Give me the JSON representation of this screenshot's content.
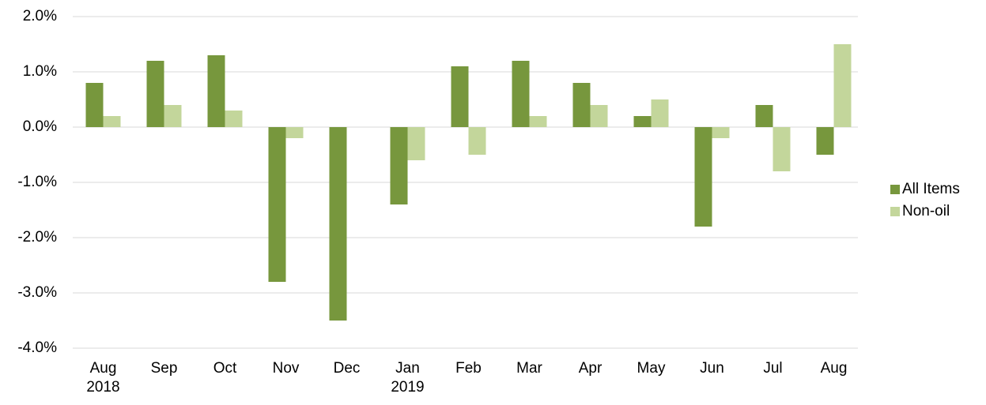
{
  "chart_data": {
    "type": "bar",
    "categories": [
      "Aug\n2018",
      "Sep",
      "Oct",
      "Nov",
      "Dec",
      "Jan\n2019",
      "Feb",
      "Mar",
      "Apr",
      "May",
      "Jun",
      "Jul",
      "Aug"
    ],
    "series": [
      {
        "name": "All Items",
        "color": "#77973d",
        "values": [
          0.8,
          1.2,
          1.3,
          -2.8,
          -3.5,
          -1.4,
          1.1,
          1.2,
          0.8,
          0.2,
          -1.8,
          0.4,
          -0.5
        ]
      },
      {
        "name": "Non-oil",
        "color": "#c3d69b",
        "values": [
          0.2,
          0.4,
          0.3,
          -0.2,
          0,
          -0.6,
          -0.5,
          0.2,
          0.4,
          0.5,
          -0.2,
          -0.8,
          1.5
        ]
      }
    ],
    "ylim": [
      -4,
      2
    ],
    "yticks": [
      {
        "value": -4,
        "label": "-4.0%"
      },
      {
        "value": -3,
        "label": "-3.0%"
      },
      {
        "value": -2,
        "label": "-2.0%"
      },
      {
        "value": -1,
        "label": "-1.0%"
      },
      {
        "value": 0,
        "label": "0.0%"
      },
      {
        "value": 1,
        "label": "1.0%"
      },
      {
        "value": 2,
        "label": "2.0%"
      }
    ],
    "grid": true,
    "legend": "right"
  }
}
